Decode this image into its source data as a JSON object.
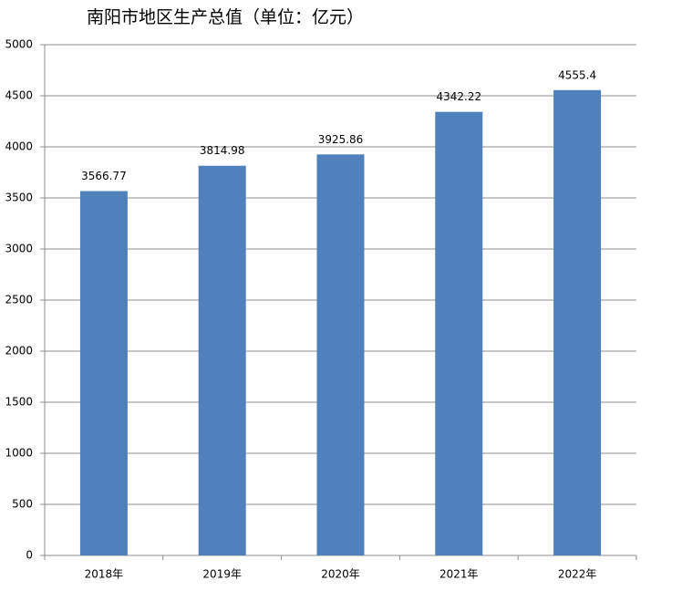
{
  "chart_data": {
    "type": "bar",
    "title": "南阳市地区生产总值（单位：亿元）",
    "categories": [
      "2018年",
      "2019年",
      "2020年",
      "2021年",
      "2022年"
    ],
    "values": [
      3566.77,
      3814.98,
      3925.86,
      4342.22,
      4555.4
    ],
    "color": "#4f81bd",
    "ylim": [
      0,
      5000
    ],
    "yticks": [
      0,
      500,
      1000,
      1500,
      2000,
      2500,
      3000,
      3500,
      4000,
      4500,
      5000
    ],
    "grid": true
  }
}
